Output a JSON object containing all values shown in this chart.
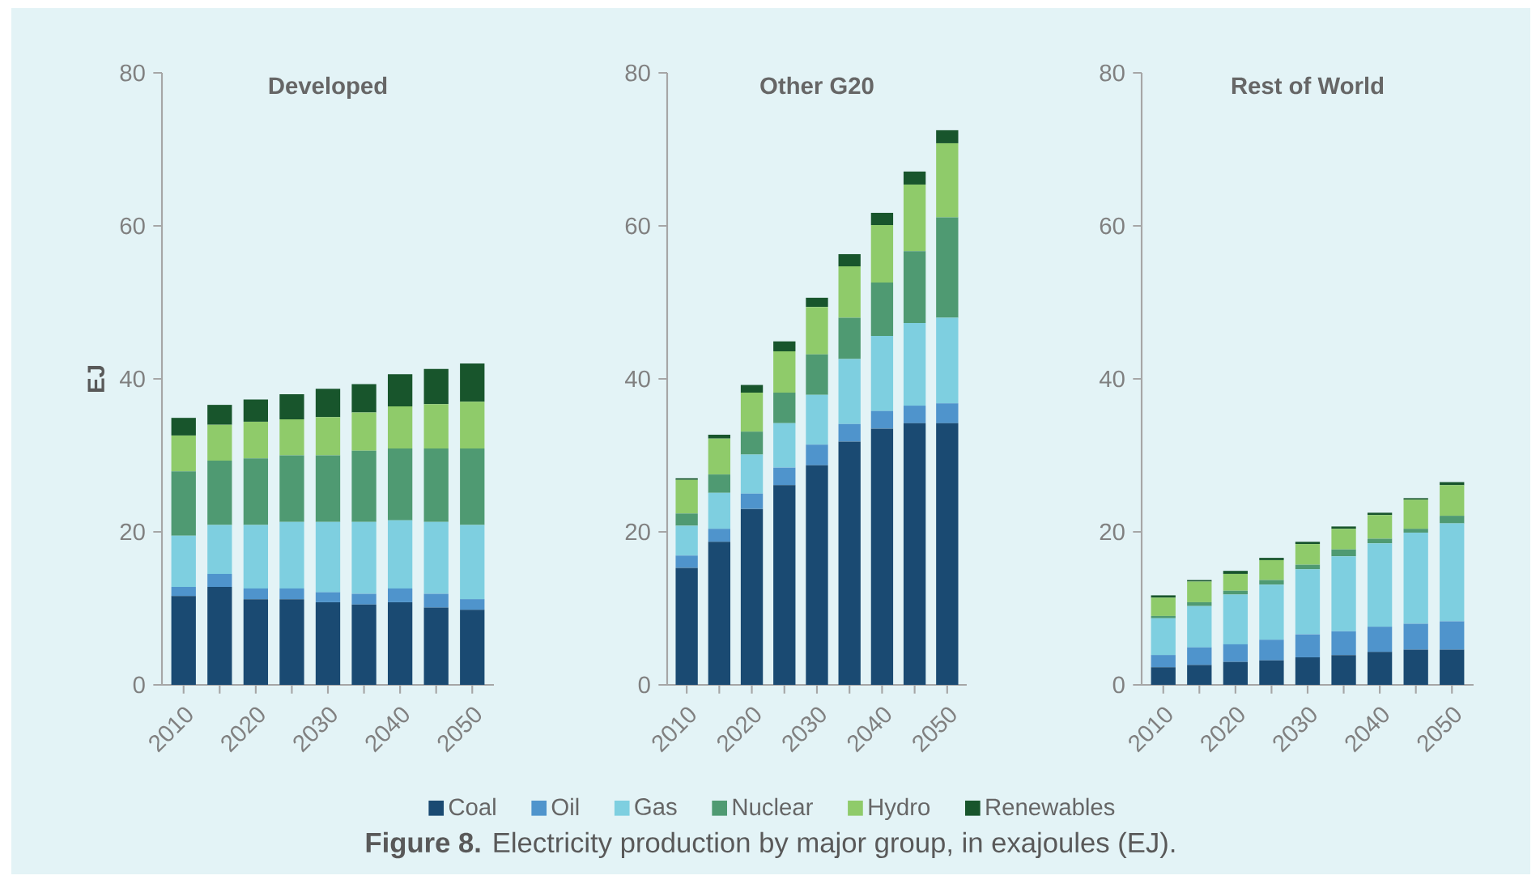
{
  "chart_data": [
    {
      "type": "bar",
      "title": "Developed",
      "ylabel": "EJ",
      "stacked": true,
      "categories": [
        "2010",
        null,
        "2020",
        null,
        "2030",
        null,
        "2040",
        null,
        "2050"
      ],
      "ylim": [
        0,
        80
      ],
      "yticks": [
        0,
        20,
        40,
        60,
        80
      ],
      "series": [
        {
          "color": "#1a4a72",
          "values": [
            11.6,
            12.8,
            11.2,
            11.2,
            10.8,
            10.5,
            10.8,
            10.1,
            9.8
          ]
        },
        {
          "color": "#4f94cc",
          "values": [
            1.2,
            1.7,
            1.4,
            1.4,
            1.3,
            1.4,
            1.8,
            1.8,
            1.4
          ]
        },
        {
          "color": "#7ecfe0",
          "values": [
            6.7,
            6.4,
            8.3,
            8.7,
            9.2,
            9.4,
            8.9,
            9.4,
            9.7
          ]
        },
        {
          "color": "#4f9a72",
          "values": [
            8.4,
            8.4,
            8.7,
            8.7,
            8.7,
            9.3,
            9.4,
            9.6,
            10.0
          ]
        },
        {
          "color": "#8fcb6a",
          "values": [
            4.7,
            4.7,
            4.8,
            4.7,
            5.0,
            5.0,
            5.5,
            5.8,
            6.1
          ]
        },
        {
          "color": "#18552c",
          "values": [
            2.3,
            2.6,
            2.9,
            3.3,
            3.7,
            3.7,
            4.2,
            4.6,
            5.0
          ]
        }
      ]
    },
    {
      "type": "bar",
      "title": "Other G20",
      "stacked": true,
      "legend": "bottom",
      "annotations": [
        "**Figure 8.** Electricity production by major group, in exajoules (EJ)."
      ],
      "categories": [
        "2010",
        null,
        "2020",
        null,
        "2030",
        null,
        "2040",
        null,
        "2050"
      ],
      "ylim": [
        0,
        80
      ],
      "yticks": [
        0,
        20,
        40,
        60,
        80
      ],
      "series": [
        {
          "name": "Coal",
          "color": "#1a4a72",
          "values": [
            15.3,
            18.7,
            23.0,
            26.1,
            28.7,
            31.8,
            33.5,
            34.2,
            34.2
          ]
        },
        {
          "name": "Oil",
          "color": "#4f94cc",
          "values": [
            1.6,
            1.7,
            2.0,
            2.3,
            2.7,
            2.3,
            2.3,
            2.3,
            2.6
          ]
        },
        {
          "name": "Gas",
          "color": "#7ecfe0",
          "values": [
            3.9,
            4.7,
            5.1,
            5.8,
            6.5,
            8.5,
            9.8,
            10.8,
            11.2
          ]
        },
        {
          "name": "Nuclear",
          "color": "#4f9a72",
          "values": [
            1.6,
            2.4,
            3.0,
            4.0,
            5.3,
            5.4,
            7.0,
            9.4,
            13.1
          ]
        },
        {
          "name": "Hydro",
          "color": "#8fcb6a",
          "values": [
            4.4,
            4.7,
            5.1,
            5.4,
            6.2,
            6.7,
            7.5,
            8.7,
            9.7
          ]
        },
        {
          "name": "Renewables",
          "color": "#18552c",
          "values": [
            0.2,
            0.5,
            1.0,
            1.3,
            1.2,
            1.6,
            1.6,
            1.7,
            1.7
          ]
        }
      ]
    },
    {
      "type": "bar",
      "title": "Rest of World",
      "stacked": true,
      "categories": [
        "2010",
        null,
        "2020",
        null,
        "2030",
        null,
        "2040",
        null,
        "2050"
      ],
      "ylim": [
        0,
        80
      ],
      "yticks": [
        0,
        20,
        40,
        60,
        80
      ],
      "series": [
        {
          "color": "#1a4a72",
          "values": [
            2.3,
            2.6,
            3.0,
            3.2,
            3.6,
            3.9,
            4.3,
            4.6,
            4.6
          ]
        },
        {
          "color": "#4f94cc",
          "values": [
            1.6,
            2.3,
            2.3,
            2.7,
            3.0,
            3.1,
            3.3,
            3.4,
            3.7
          ]
        },
        {
          "color": "#7ecfe0",
          "values": [
            4.8,
            5.4,
            6.5,
            7.2,
            8.5,
            9.8,
            10.9,
            11.9,
            12.8
          ]
        },
        {
          "color": "#4f9a72",
          "values": [
            0.3,
            0.5,
            0.5,
            0.6,
            0.6,
            0.9,
            0.6,
            0.5,
            1.0
          ]
        },
        {
          "color": "#8fcb6a",
          "values": [
            2.4,
            2.7,
            2.2,
            2.6,
            2.7,
            2.7,
            3.1,
            3.8,
            4.0
          ]
        },
        {
          "color": "#18552c",
          "values": [
            0.3,
            0.2,
            0.4,
            0.3,
            0.3,
            0.3,
            0.3,
            0.2,
            0.4
          ]
        }
      ]
    }
  ]
}
